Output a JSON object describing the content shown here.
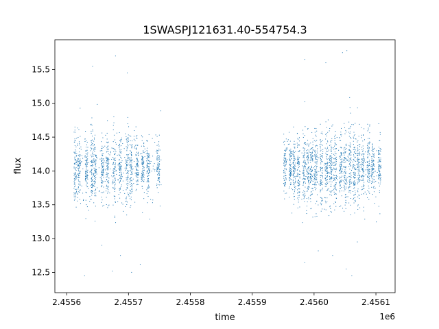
{
  "chart_data": {
    "type": "scatter",
    "title": "1SWASPJ121631.40-554754.3",
    "xlabel": "time",
    "ylabel": "flux",
    "x_offset_label": "1e6",
    "xlim": [
      2455581,
      2456131
    ],
    "ylim": [
      12.2,
      15.94
    ],
    "x_ticks": [
      2455600,
      2455700,
      2455800,
      2455900,
      2456000,
      2456100
    ],
    "x_tick_labels": [
      "2.4556",
      "2.4557",
      "2.4558",
      "2.4559",
      "2.4560",
      "2.4561"
    ],
    "y_ticks": [
      12.5,
      13.0,
      13.5,
      14.0,
      14.5,
      15.0,
      15.5
    ],
    "y_tick_labels": [
      "12.5",
      "13.0",
      "13.5",
      "14.0",
      "14.5",
      "15.0",
      "15.5"
    ],
    "grid": false,
    "marker_color": "#1f77b4",
    "median_flux": 14.05,
    "observing_seasons": [
      {
        "start": 2455613,
        "end": 2455753
      },
      {
        "start": 2455953,
        "end": 2456108
      }
    ],
    "nightly_clusters": [
      {
        "x": 2455614,
        "spread": 0.55
      },
      {
        "x": 2455620,
        "spread": 0.45
      },
      {
        "x": 2455632,
        "spread": 0.35
      },
      {
        "x": 2455641,
        "spread": 0.5
      },
      {
        "x": 2455646,
        "spread": 0.45
      },
      {
        "x": 2455658,
        "spread": 0.35
      },
      {
        "x": 2455666,
        "spread": 0.45
      },
      {
        "x": 2455677,
        "spread": 0.5
      },
      {
        "x": 2455687,
        "spread": 0.45
      },
      {
        "x": 2455698,
        "spread": 0.55
      },
      {
        "x": 2455704,
        "spread": 0.45
      },
      {
        "x": 2455714,
        "spread": 0.35
      },
      {
        "x": 2455723,
        "spread": 0.35
      },
      {
        "x": 2455732,
        "spread": 0.35
      },
      {
        "x": 2455748,
        "spread": 0.3
      },
      {
        "x": 2455953,
        "spread": 0.35
      },
      {
        "x": 2455962,
        "spread": 0.3
      },
      {
        "x": 2455968,
        "spread": 0.4
      },
      {
        "x": 2455975,
        "spread": 0.45
      },
      {
        "x": 2455984,
        "spread": 0.5
      },
      {
        "x": 2455990,
        "spread": 0.5
      },
      {
        "x": 2455996,
        "spread": 0.45
      },
      {
        "x": 2456003,
        "spread": 0.5
      },
      {
        "x": 2456012,
        "spread": 0.45
      },
      {
        "x": 2456020,
        "spread": 0.5
      },
      {
        "x": 2456027,
        "spread": 0.5
      },
      {
        "x": 2456034,
        "spread": 0.45
      },
      {
        "x": 2456043,
        "spread": 0.45
      },
      {
        "x": 2456050,
        "spread": 0.5
      },
      {
        "x": 2456058,
        "spread": 0.6
      },
      {
        "x": 2456065,
        "spread": 0.55
      },
      {
        "x": 2456072,
        "spread": 0.5
      },
      {
        "x": 2456079,
        "spread": 0.45
      },
      {
        "x": 2456088,
        "spread": 0.4
      },
      {
        "x": 2456095,
        "spread": 0.35
      },
      {
        "x": 2456106,
        "spread": 0.4
      }
    ],
    "outliers": [
      {
        "x": 2455642,
        "y": 15.55
      },
      {
        "x": 2455679,
        "y": 15.7
      },
      {
        "x": 2455698,
        "y": 15.45
      },
      {
        "x": 2455657,
        "y": 12.9
      },
      {
        "x": 2455687,
        "y": 12.75
      },
      {
        "x": 2455705,
        "y": 12.5
      },
      {
        "x": 2455629,
        "y": 12.45
      },
      {
        "x": 2455674,
        "y": 12.52
      },
      {
        "x": 2455719,
        "y": 12.62
      },
      {
        "x": 2456046,
        "y": 15.75
      },
      {
        "x": 2456053,
        "y": 15.78
      },
      {
        "x": 2456019,
        "y": 15.6
      },
      {
        "x": 2455985,
        "y": 15.65
      },
      {
        "x": 2456061,
        "y": 12.45
      },
      {
        "x": 2456052,
        "y": 12.55
      },
      {
        "x": 2456030,
        "y": 12.75
      },
      {
        "x": 2455985,
        "y": 12.65
      },
      {
        "x": 2456070,
        "y": 12.95
      }
    ]
  }
}
